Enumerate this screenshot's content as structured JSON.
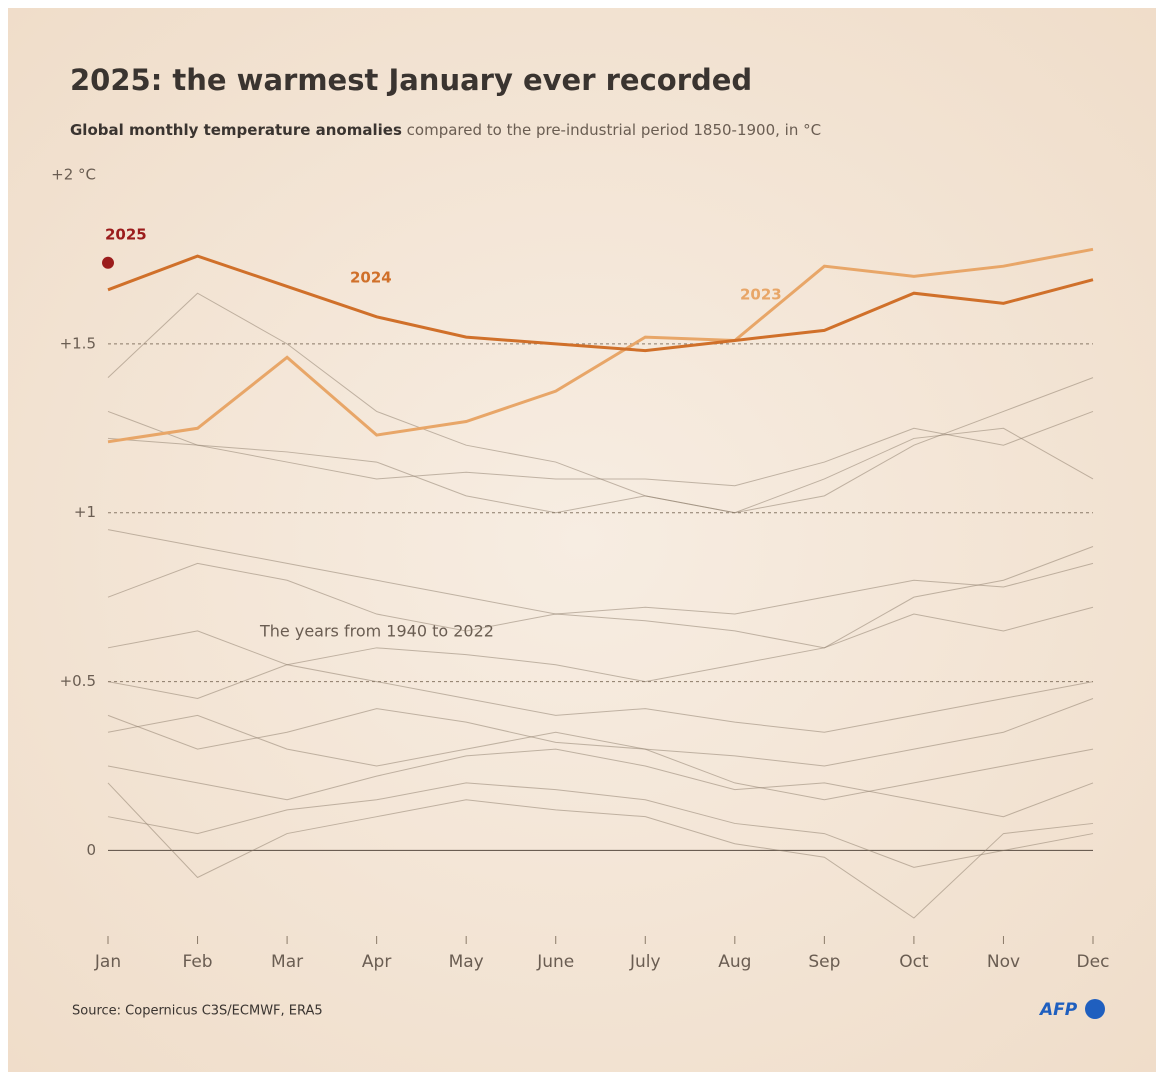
{
  "chart_data": {
    "type": "line",
    "title": "2025: the warmest January ever recorded",
    "subtitle_bold": "Global monthly temperature anomalies",
    "subtitle": "compared to the pre-industrial period 1850-1900, in °C",
    "annotation": "The years from 1940 to 2022",
    "source": "Source: Copernicus C3S/ECMWF, ERA5",
    "credit": "AFP",
    "categories": [
      "Jan",
      "Feb",
      "Mar",
      "Apr",
      "May",
      "June",
      "July",
      "Aug",
      "Sep",
      "Oct",
      "Nov",
      "Dec"
    ],
    "ylim": [
      -0.2,
      2
    ],
    "yticks": [
      0,
      {
        "value": 0.5,
        "label": "+0.5"
      },
      {
        "value": 1,
        "label": "+1"
      },
      {
        "value": 1.5,
        "label": "+1.5"
      },
      {
        "value": 2,
        "label": "+2 °C"
      }
    ],
    "grid": true,
    "series": [
      {
        "name": "2023",
        "color": "#e8a668",
        "values": [
          1.21,
          1.25,
          1.46,
          1.23,
          1.27,
          1.36,
          1.52,
          1.51,
          1.73,
          1.7,
          1.73,
          1.78
        ]
      },
      {
        "name": "2024",
        "color": "#d0702a",
        "values": [
          1.66,
          1.76,
          1.67,
          1.58,
          1.52,
          1.5,
          1.48,
          1.51,
          1.54,
          1.65,
          1.62,
          1.69
        ]
      },
      {
        "name": "2025",
        "color": "#9b1c1c",
        "values": [
          1.74,
          null,
          null,
          null,
          null,
          null,
          null,
          null,
          null,
          null,
          null,
          null
        ]
      }
    ],
    "background_color": "#8a7a68",
    "background_series": [
      [
        0.95,
        0.9,
        0.85,
        0.8,
        0.75,
        0.7,
        0.72,
        0.7,
        0.75,
        0.8,
        0.78,
        0.85
      ],
      [
        1.3,
        1.2,
        1.15,
        1.1,
        1.12,
        1.1,
        1.1,
        1.08,
        1.15,
        1.25,
        1.2,
        1.3
      ],
      [
        1.22,
        1.2,
        1.18,
        1.15,
        1.05,
        1.0,
        1.05,
        1.0,
        1.1,
        1.22,
        1.25,
        1.1
      ],
      [
        0.6,
        0.65,
        0.55,
        0.6,
        0.58,
        0.55,
        0.5,
        0.55,
        0.6,
        0.7,
        0.65,
        0.72
      ],
      [
        0.4,
        0.3,
        0.35,
        0.42,
        0.38,
        0.32,
        0.3,
        0.28,
        0.25,
        0.3,
        0.35,
        0.45
      ],
      [
        0.25,
        0.2,
        0.15,
        0.22,
        0.28,
        0.3,
        0.25,
        0.18,
        0.2,
        0.15,
        0.1,
        0.2
      ],
      [
        0.1,
        0.05,
        0.12,
        0.15,
        0.2,
        0.18,
        0.15,
        0.08,
        0.05,
        -0.05,
        0.0,
        0.05
      ],
      [
        0.35,
        0.4,
        0.3,
        0.25,
        0.3,
        0.35,
        0.3,
        0.2,
        0.15,
        0.2,
        0.25,
        0.3
      ],
      [
        0.5,
        0.45,
        0.55,
        0.5,
        0.45,
        0.4,
        0.42,
        0.38,
        0.35,
        0.4,
        0.45,
        0.5
      ],
      [
        0.75,
        0.85,
        0.8,
        0.7,
        0.65,
        0.7,
        0.68,
        0.65,
        0.6,
        0.75,
        0.8,
        0.9
      ],
      [
        1.4,
        1.65,
        1.5,
        1.3,
        1.2,
        1.15,
        1.05,
        1.0,
        1.05,
        1.2,
        1.3,
        1.4
      ],
      [
        0.2,
        -0.08,
        0.05,
        0.1,
        0.15,
        0.12,
        0.1,
        0.02,
        -0.02,
        -0.2,
        0.05,
        0.08
      ]
    ]
  }
}
